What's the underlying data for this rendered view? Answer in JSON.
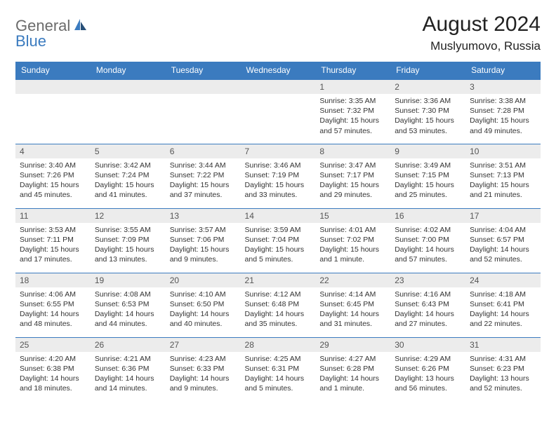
{
  "logo": {
    "general": "General",
    "blue": "Blue"
  },
  "header": {
    "title": "August 2024",
    "location": "Muslyumovo, Russia"
  },
  "colors": {
    "header_bg": "#3b7bbf",
    "header_text": "#ffffff",
    "daynum_bg": "#ececec",
    "text": "#333333",
    "logo_grey": "#6b6b6b",
    "logo_blue": "#3b7bbf"
  },
  "daynames": [
    "Sunday",
    "Monday",
    "Tuesday",
    "Wednesday",
    "Thursday",
    "Friday",
    "Saturday"
  ],
  "weeks": [
    [
      {
        "n": "",
        "sr": "",
        "ss": "",
        "dl": ""
      },
      {
        "n": "",
        "sr": "",
        "ss": "",
        "dl": ""
      },
      {
        "n": "",
        "sr": "",
        "ss": "",
        "dl": ""
      },
      {
        "n": "",
        "sr": "",
        "ss": "",
        "dl": ""
      },
      {
        "n": "1",
        "sr": "Sunrise: 3:35 AM",
        "ss": "Sunset: 7:32 PM",
        "dl": "Daylight: 15 hours and 57 minutes."
      },
      {
        "n": "2",
        "sr": "Sunrise: 3:36 AM",
        "ss": "Sunset: 7:30 PM",
        "dl": "Daylight: 15 hours and 53 minutes."
      },
      {
        "n": "3",
        "sr": "Sunrise: 3:38 AM",
        "ss": "Sunset: 7:28 PM",
        "dl": "Daylight: 15 hours and 49 minutes."
      }
    ],
    [
      {
        "n": "4",
        "sr": "Sunrise: 3:40 AM",
        "ss": "Sunset: 7:26 PM",
        "dl": "Daylight: 15 hours and 45 minutes."
      },
      {
        "n": "5",
        "sr": "Sunrise: 3:42 AM",
        "ss": "Sunset: 7:24 PM",
        "dl": "Daylight: 15 hours and 41 minutes."
      },
      {
        "n": "6",
        "sr": "Sunrise: 3:44 AM",
        "ss": "Sunset: 7:22 PM",
        "dl": "Daylight: 15 hours and 37 minutes."
      },
      {
        "n": "7",
        "sr": "Sunrise: 3:46 AM",
        "ss": "Sunset: 7:19 PM",
        "dl": "Daylight: 15 hours and 33 minutes."
      },
      {
        "n": "8",
        "sr": "Sunrise: 3:47 AM",
        "ss": "Sunset: 7:17 PM",
        "dl": "Daylight: 15 hours and 29 minutes."
      },
      {
        "n": "9",
        "sr": "Sunrise: 3:49 AM",
        "ss": "Sunset: 7:15 PM",
        "dl": "Daylight: 15 hours and 25 minutes."
      },
      {
        "n": "10",
        "sr": "Sunrise: 3:51 AM",
        "ss": "Sunset: 7:13 PM",
        "dl": "Daylight: 15 hours and 21 minutes."
      }
    ],
    [
      {
        "n": "11",
        "sr": "Sunrise: 3:53 AM",
        "ss": "Sunset: 7:11 PM",
        "dl": "Daylight: 15 hours and 17 minutes."
      },
      {
        "n": "12",
        "sr": "Sunrise: 3:55 AM",
        "ss": "Sunset: 7:09 PM",
        "dl": "Daylight: 15 hours and 13 minutes."
      },
      {
        "n": "13",
        "sr": "Sunrise: 3:57 AM",
        "ss": "Sunset: 7:06 PM",
        "dl": "Daylight: 15 hours and 9 minutes."
      },
      {
        "n": "14",
        "sr": "Sunrise: 3:59 AM",
        "ss": "Sunset: 7:04 PM",
        "dl": "Daylight: 15 hours and 5 minutes."
      },
      {
        "n": "15",
        "sr": "Sunrise: 4:01 AM",
        "ss": "Sunset: 7:02 PM",
        "dl": "Daylight: 15 hours and 1 minute."
      },
      {
        "n": "16",
        "sr": "Sunrise: 4:02 AM",
        "ss": "Sunset: 7:00 PM",
        "dl": "Daylight: 14 hours and 57 minutes."
      },
      {
        "n": "17",
        "sr": "Sunrise: 4:04 AM",
        "ss": "Sunset: 6:57 PM",
        "dl": "Daylight: 14 hours and 52 minutes."
      }
    ],
    [
      {
        "n": "18",
        "sr": "Sunrise: 4:06 AM",
        "ss": "Sunset: 6:55 PM",
        "dl": "Daylight: 14 hours and 48 minutes."
      },
      {
        "n": "19",
        "sr": "Sunrise: 4:08 AM",
        "ss": "Sunset: 6:53 PM",
        "dl": "Daylight: 14 hours and 44 minutes."
      },
      {
        "n": "20",
        "sr": "Sunrise: 4:10 AM",
        "ss": "Sunset: 6:50 PM",
        "dl": "Daylight: 14 hours and 40 minutes."
      },
      {
        "n": "21",
        "sr": "Sunrise: 4:12 AM",
        "ss": "Sunset: 6:48 PM",
        "dl": "Daylight: 14 hours and 35 minutes."
      },
      {
        "n": "22",
        "sr": "Sunrise: 4:14 AM",
        "ss": "Sunset: 6:45 PM",
        "dl": "Daylight: 14 hours and 31 minutes."
      },
      {
        "n": "23",
        "sr": "Sunrise: 4:16 AM",
        "ss": "Sunset: 6:43 PM",
        "dl": "Daylight: 14 hours and 27 minutes."
      },
      {
        "n": "24",
        "sr": "Sunrise: 4:18 AM",
        "ss": "Sunset: 6:41 PM",
        "dl": "Daylight: 14 hours and 22 minutes."
      }
    ],
    [
      {
        "n": "25",
        "sr": "Sunrise: 4:20 AM",
        "ss": "Sunset: 6:38 PM",
        "dl": "Daylight: 14 hours and 18 minutes."
      },
      {
        "n": "26",
        "sr": "Sunrise: 4:21 AM",
        "ss": "Sunset: 6:36 PM",
        "dl": "Daylight: 14 hours and 14 minutes."
      },
      {
        "n": "27",
        "sr": "Sunrise: 4:23 AM",
        "ss": "Sunset: 6:33 PM",
        "dl": "Daylight: 14 hours and 9 minutes."
      },
      {
        "n": "28",
        "sr": "Sunrise: 4:25 AM",
        "ss": "Sunset: 6:31 PM",
        "dl": "Daylight: 14 hours and 5 minutes."
      },
      {
        "n": "29",
        "sr": "Sunrise: 4:27 AM",
        "ss": "Sunset: 6:28 PM",
        "dl": "Daylight: 14 hours and 1 minute."
      },
      {
        "n": "30",
        "sr": "Sunrise: 4:29 AM",
        "ss": "Sunset: 6:26 PM",
        "dl": "Daylight: 13 hours and 56 minutes."
      },
      {
        "n": "31",
        "sr": "Sunrise: 4:31 AM",
        "ss": "Sunset: 6:23 PM",
        "dl": "Daylight: 13 hours and 52 minutes."
      }
    ]
  ]
}
